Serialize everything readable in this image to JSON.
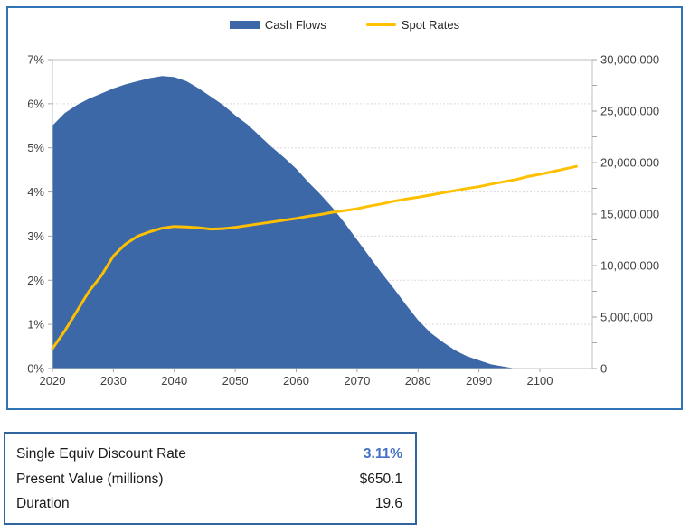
{
  "chart": {
    "left_axis_tick_labels": [
      "0%",
      "1%",
      "2%",
      "3%",
      "4%",
      "5%",
      "6%",
      "7%"
    ],
    "right_axis_tick_labels": [
      "0",
      "5,000,000",
      "10,000,000",
      "15,000,000",
      "20,000,000",
      "25,000,000",
      "30,000,000"
    ],
    "x_axis_tick_labels": [
      "2020",
      "2030",
      "2040",
      "2050",
      "2060",
      "2070",
      "2080",
      "2090",
      "2100"
    ]
  },
  "chart_data": {
    "type": "combo",
    "title": "",
    "legend_position": "top",
    "grid": true,
    "x": [
      2020,
      2022,
      2024,
      2026,
      2028,
      2030,
      2032,
      2034,
      2036,
      2038,
      2040,
      2042,
      2044,
      2046,
      2048,
      2050,
      2052,
      2054,
      2056,
      2058,
      2060,
      2062,
      2064,
      2066,
      2068,
      2070,
      2072,
      2074,
      2076,
      2078,
      2080,
      2082,
      2084,
      2086,
      2088,
      2090,
      2092,
      2094,
      2096,
      2098,
      2100,
      2102,
      2104,
      2106
    ],
    "series": [
      {
        "name": "Cash Flows",
        "type": "area",
        "axis": "right",
        "color": "#3C68A8",
        "values": [
          23600000,
          24800000,
          25600000,
          26200000,
          26700000,
          27200000,
          27600000,
          27900000,
          28200000,
          28400000,
          28300000,
          27900000,
          27200000,
          26400000,
          25600000,
          24600000,
          23700000,
          22600000,
          21500000,
          20500000,
          19400000,
          18100000,
          16900000,
          15600000,
          14100000,
          12500000,
          10900000,
          9300000,
          7800000,
          6200000,
          4700000,
          3500000,
          2600000,
          1800000,
          1200000,
          800000,
          400000,
          200000,
          0,
          0,
          0,
          0,
          0,
          0
        ]
      },
      {
        "name": "Spot Rates",
        "type": "line",
        "axis": "left",
        "unit": "%",
        "color": "#FFC000",
        "values": [
          0.45,
          0.85,
          1.3,
          1.75,
          2.1,
          2.55,
          2.82,
          3.0,
          3.1,
          3.18,
          3.22,
          3.21,
          3.19,
          3.16,
          3.17,
          3.2,
          3.24,
          3.28,
          3.32,
          3.36,
          3.4,
          3.45,
          3.49,
          3.54,
          3.58,
          3.62,
          3.68,
          3.73,
          3.79,
          3.84,
          3.88,
          3.93,
          3.98,
          4.03,
          4.08,
          4.12,
          4.18,
          4.23,
          4.28,
          4.35,
          4.4,
          4.46,
          4.52,
          4.58
        ]
      }
    ],
    "left_axis": {
      "min": 0,
      "max": 7,
      "unit": "%",
      "tick_step": 1
    },
    "right_axis": {
      "min": 0,
      "max": 30000000,
      "tick_step": 5000000,
      "minor_tick_step": 2500000
    },
    "x_axis": {
      "min": 2020,
      "tick_years": [
        2020,
        2030,
        2040,
        2050,
        2060,
        2070,
        2080,
        2090,
        2100
      ],
      "px_note": "domain extends to ~2108"
    }
  },
  "summary": {
    "rows": [
      {
        "label": "Single Equiv Discount Rate",
        "value": "3.11%"
      },
      {
        "label": "Present Value (millions)",
        "value": "$650.1"
      },
      {
        "label": "Duration",
        "value": "19.6"
      }
    ]
  },
  "colors": {
    "cash_flows": "#3C68A8",
    "spot_rates": "#FFC000",
    "chart_border": "#2E74B5",
    "table_border": "#31639C",
    "accent_value": "#4472C4",
    "gridline": "#D9D9D9",
    "plot_border": "#BFBFBF",
    "axis_text": "#404040"
  }
}
